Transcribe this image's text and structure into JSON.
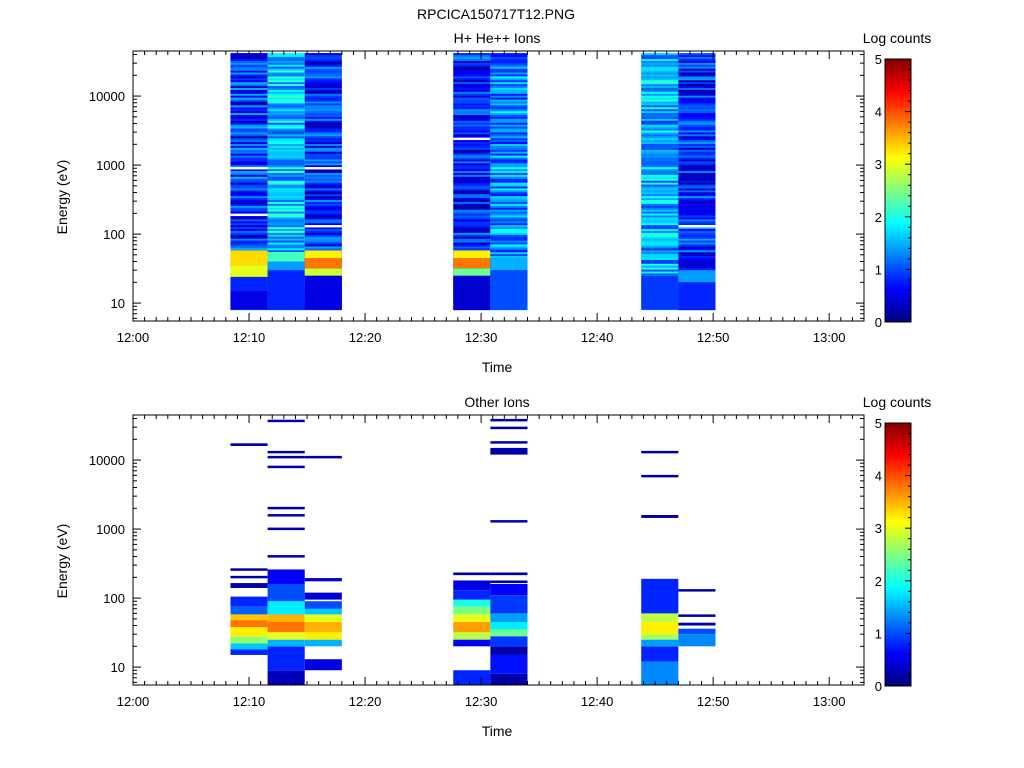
{
  "figure_title": "RPCICA150717T12.PNG",
  "colormap": [
    "#00007f",
    "#0000ff",
    "#007fff",
    "#00ffff",
    "#7fff7f",
    "#ffff00",
    "#ff7f00",
    "#ff0000",
    "#7f0000"
  ],
  "chart_data": [
    {
      "type": "heatmap",
      "title": "H+ He++ Ions",
      "xlabel": "Time",
      "ylabel": "Energy (eV)",
      "xlim": [
        "12:00",
        "13:03"
      ],
      "ylim": [
        5.5,
        45000
      ],
      "y_scale": "log",
      "x_ticks": [
        "12:00",
        "12:10",
        "12:20",
        "12:30",
        "12:40",
        "12:50",
        "13:00"
      ],
      "y_ticks": [
        "10",
        "100",
        "1000",
        "10000"
      ],
      "colorbar": {
        "label": "Log counts",
        "range": [
          0,
          5
        ],
        "ticks": [
          "0",
          "1",
          "2",
          "3",
          "4",
          "5"
        ]
      },
      "columns": [
        {
          "t_start": "12:08.4",
          "t_end": "12:11.6",
          "emin": 8,
          "emax": 42000,
          "base": 0.9,
          "cells": [
            {
              "e": [
                8,
                15
              ],
              "v": 0.5
            },
            {
              "e": [
                15,
                24
              ],
              "v": 0.8
            },
            {
              "e": [
                24,
                35
              ],
              "v": 3.0
            },
            {
              "e": [
                35,
                58
              ],
              "v": 3.3
            }
          ],
          "gaps": [
            190,
            900
          ]
        },
        {
          "t_start": "12:11.6",
          "t_end": "12:14.8",
          "emin": 8,
          "emax": 42000,
          "base": 1.6,
          "cells": [
            {
              "e": [
                8,
                30
              ],
              "v": 0.8
            },
            {
              "e": [
                30,
                40
              ],
              "v": 1.4
            },
            {
              "e": [
                40,
                55
              ],
              "v": 2.2
            }
          ],
          "gaps": []
        },
        {
          "t_start": "12:14.8",
          "t_end": "12:18.0",
          "emin": 8,
          "emax": 42000,
          "base": 0.8,
          "cells": [
            {
              "e": [
                8,
                25
              ],
              "v": 0.5
            },
            {
              "e": [
                25,
                32
              ],
              "v": 2.9
            },
            {
              "e": [
                32,
                45
              ],
              "v": 3.8
            },
            {
              "e": [
                45,
                58
              ],
              "v": 3.2
            }
          ],
          "gaps": [
            130,
            900
          ]
        },
        {
          "t_start": "12:27.6",
          "t_end": "12:30.8",
          "emin": 8,
          "emax": 42000,
          "base": 0.8,
          "cells": [
            {
              "e": [
                8,
                25
              ],
              "v": 0.4
            },
            {
              "e": [
                25,
                32
              ],
              "v": 2.4
            },
            {
              "e": [
                32,
                45
              ],
              "v": 3.8
            },
            {
              "e": [
                45,
                58
              ],
              "v": 3.2
            }
          ],
          "gaps": [
            2400
          ]
        },
        {
          "t_start": "12:30.8",
          "t_end": "12:34.0",
          "emin": 8,
          "emax": 42000,
          "base": 1.3,
          "cells": [
            {
              "e": [
                8,
                30
              ],
              "v": 1.0
            },
            {
              "e": [
                30,
                45
              ],
              "v": 1.5
            }
          ],
          "gaps": []
        },
        {
          "t_start": "12:43.8",
          "t_end": "12:47.0",
          "emin": 8,
          "emax": 42000,
          "base": 1.5,
          "cells": [
            {
              "e": [
                8,
                25
              ],
              "v": 0.9
            }
          ],
          "gaps": []
        },
        {
          "t_start": "12:47.0",
          "t_end": "12:50.2",
          "emin": 8,
          "emax": 42000,
          "base": 0.8,
          "cells": [
            {
              "e": [
                8,
                20
              ],
              "v": 0.8
            },
            {
              "e": [
                20,
                30
              ],
              "v": 1.4
            }
          ],
          "gaps": [
            130
          ]
        }
      ]
    },
    {
      "type": "heatmap",
      "title": "Other Ions",
      "xlabel": "Time",
      "ylabel": "Energy (eV)",
      "xlim": [
        "12:00",
        "13:03"
      ],
      "ylim": [
        5.5,
        45000
      ],
      "y_scale": "log",
      "x_ticks": [
        "12:00",
        "12:10",
        "12:20",
        "12:30",
        "12:40",
        "12:50",
        "13:00"
      ],
      "y_ticks": [
        "10",
        "100",
        "1000",
        "10000"
      ],
      "colorbar": {
        "label": "Log counts",
        "range": [
          0,
          5
        ],
        "ticks": [
          "0",
          "1",
          "2",
          "3",
          "4",
          "5"
        ]
      },
      "columns": [
        {
          "t_start": "12:08.4",
          "t_end": "12:11.6",
          "cells": [
            {
              "e": [
                15,
                18
              ],
              "v": 0.8
            },
            {
              "e": [
                18,
                22
              ],
              "v": 1.6
            },
            {
              "e": [
                22,
                28
              ],
              "v": 2.6
            },
            {
              "e": [
                28,
                38
              ],
              "v": 3.2
            },
            {
              "e": [
                38,
                48
              ],
              "v": 3.8
            },
            {
              "e": [
                48,
                58
              ],
              "v": 3.4
            },
            {
              "e": [
                58,
                75
              ],
              "v": 1.1
            },
            {
              "e": [
                75,
                105
              ],
              "v": 0.8
            },
            {
              "e": [
                140,
                165
              ],
              "v": 0.2
            },
            {
              "e": [
                195,
                210
              ],
              "v": 0.2
            },
            {
              "e": [
                255,
                270
              ],
              "v": 0.2
            },
            {
              "e": [
                16000,
                17500
              ],
              "v": 0.2
            }
          ]
        },
        {
          "t_start": "12:11.6",
          "t_end": "12:14.8",
          "cells": [
            {
              "e": [
                5.5,
                9
              ],
              "v": 0.3
            },
            {
              "e": [
                9,
                20
              ],
              "v": 0.8
            },
            {
              "e": [
                20,
                25
              ],
              "v": 1.5
            },
            {
              "e": [
                25,
                32
              ],
              "v": 3.0
            },
            {
              "e": [
                32,
                45
              ],
              "v": 3.8
            },
            {
              "e": [
                45,
                58
              ],
              "v": 3.5
            },
            {
              "e": [
                58,
                90
              ],
              "v": 1.8
            },
            {
              "e": [
                90,
                160
              ],
              "v": 1.0
            },
            {
              "e": [
                160,
                260
              ],
              "v": 0.6
            },
            {
              "e": [
                390,
                420
              ],
              "v": 0.2
            },
            {
              "e": [
                980,
                1050
              ],
              "v": 0.2
            },
            {
              "e": [
                1550,
                1650
              ],
              "v": 0.2
            },
            {
              "e": [
                1950,
                2100
              ],
              "v": 0.2
            },
            {
              "e": [
                7800,
                8300
              ],
              "v": 0.2
            },
            {
              "e": [
                10800,
                11500
              ],
              "v": 0.2
            },
            {
              "e": [
                12800,
                13600
              ],
              "v": 0.2
            },
            {
              "e": [
                36000,
                38500
              ],
              "v": 0.2
            }
          ]
        },
        {
          "t_start": "12:14.8",
          "t_end": "12:18.0",
          "cells": [
            {
              "e": [
                9,
                13
              ],
              "v": 0.5
            },
            {
              "e": [
                20,
                25
              ],
              "v": 1.5
            },
            {
              "e": [
                25,
                32
              ],
              "v": 3.2
            },
            {
              "e": [
                32,
                45
              ],
              "v": 3.5
            },
            {
              "e": [
                45,
                58
              ],
              "v": 3.0
            },
            {
              "e": [
                58,
                70
              ],
              "v": 1.6
            },
            {
              "e": [
                70,
                90
              ],
              "v": 1.0
            },
            {
              "e": [
                95,
                120
              ],
              "v": 0.4
            },
            {
              "e": [
                175,
                195
              ],
              "v": 0.4
            },
            {
              "e": [
                10800,
                11500
              ],
              "v": 0.2
            }
          ]
        },
        {
          "t_start": "12:27.6",
          "t_end": "12:30.8",
          "cells": [
            {
              "e": [
                5.5,
                9
              ],
              "v": 0.8
            },
            {
              "e": [
                20,
                25
              ],
              "v": 0.6
            },
            {
              "e": [
                25,
                32
              ],
              "v": 2.8
            },
            {
              "e": [
                32,
                45
              ],
              "v": 3.6
            },
            {
              "e": [
                45,
                58
              ],
              "v": 3.0
            },
            {
              "e": [
                58,
                75
              ],
              "v": 2.5
            },
            {
              "e": [
                75,
                95
              ],
              "v": 2.0
            },
            {
              "e": [
                95,
                130
              ],
              "v": 0.8
            },
            {
              "e": [
                130,
                180
              ],
              "v": 0.5
            },
            {
              "e": [
                215,
                235
              ],
              "v": 0.2
            }
          ]
        },
        {
          "t_start": "12:30.8",
          "t_end": "12:34.0",
          "cells": [
            {
              "e": [
                5.5,
                8
              ],
              "v": 0.2
            },
            {
              "e": [
                8,
                15
              ],
              "v": 0.7
            },
            {
              "e": [
                15,
                20
              ],
              "v": 0.2
            },
            {
              "e": [
                20,
                28
              ],
              "v": 0.9
            },
            {
              "e": [
                28,
                35
              ],
              "v": 2.4
            },
            {
              "e": [
                35,
                45
              ],
              "v": 1.8
            },
            {
              "e": [
                45,
                60
              ],
              "v": 1.4
            },
            {
              "e": [
                60,
                110
              ],
              "v": 0.9
            },
            {
              "e": [
                110,
                160
              ],
              "v": 0.6
            },
            {
              "e": [
                165,
                180
              ],
              "v": 0.2
            },
            {
              "e": [
                215,
                235
              ],
              "v": 0.2
            },
            {
              "e": [
                1250,
                1350
              ],
              "v": 0.2
            },
            {
              "e": [
                12000,
                15000
              ],
              "v": 0.2
            },
            {
              "e": [
                17500,
                18800
              ],
              "v": 0.2
            },
            {
              "e": [
                28500,
                30500
              ],
              "v": 0.2
            },
            {
              "e": [
                37000,
                39500
              ],
              "v": 0.2
            }
          ]
        },
        {
          "t_start": "12:43.8",
          "t_end": "12:47.0",
          "cells": [
            {
              "e": [
                5.5,
                12
              ],
              "v": 1.3
            },
            {
              "e": [
                12,
                20
              ],
              "v": 0.8
            },
            {
              "e": [
                20,
                25
              ],
              "v": 1.4
            },
            {
              "e": [
                25,
                30
              ],
              "v": 2.7
            },
            {
              "e": [
                30,
                45
              ],
              "v": 3.2
            },
            {
              "e": [
                45,
                60
              ],
              "v": 2.8
            },
            {
              "e": [
                60,
                190
              ],
              "v": 0.8
            },
            {
              "e": [
                1450,
                1600
              ],
              "v": 0.2
            },
            {
              "e": [
                5700,
                6100
              ],
              "v": 0.2
            },
            {
              "e": [
                12800,
                13600
              ],
              "v": 0.2
            }
          ]
        },
        {
          "t_start": "12:47.0",
          "t_end": "12:50.2",
          "cells": [
            {
              "e": [
                20,
                30
              ],
              "v": 1.3
            },
            {
              "e": [
                30,
                36
              ],
              "v": 1.0
            },
            {
              "e": [
                40,
                44
              ],
              "v": 0.2
            },
            {
              "e": [
                54,
                58
              ],
              "v": 0.2
            },
            {
              "e": [
                125,
                135
              ],
              "v": 0.2
            }
          ]
        }
      ]
    }
  ]
}
